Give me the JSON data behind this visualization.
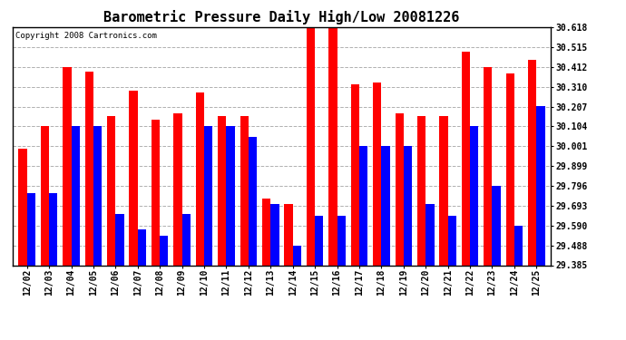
{
  "title": "Barometric Pressure Daily High/Low 20081226",
  "copyright": "Copyright 2008 Cartronics.com",
  "dates": [
    "12/02",
    "12/03",
    "12/04",
    "12/05",
    "12/06",
    "12/07",
    "12/08",
    "12/09",
    "12/10",
    "12/11",
    "12/12",
    "12/13",
    "12/14",
    "12/15",
    "12/16",
    "12/17",
    "12/18",
    "12/19",
    "12/20",
    "12/21",
    "12/22",
    "12/23",
    "12/24",
    "12/25"
  ],
  "highs": [
    29.99,
    30.104,
    30.412,
    30.39,
    30.16,
    30.29,
    30.14,
    30.17,
    30.28,
    30.16,
    30.16,
    29.73,
    29.7,
    30.618,
    30.618,
    30.32,
    30.33,
    30.17,
    30.16,
    30.16,
    30.49,
    30.412,
    30.38,
    30.45
  ],
  "lows": [
    29.76,
    29.76,
    30.104,
    30.104,
    29.65,
    29.57,
    29.54,
    29.65,
    30.104,
    30.104,
    30.05,
    29.7,
    29.488,
    29.64,
    29.64,
    30.001,
    30.001,
    30.001,
    29.7,
    29.64,
    30.104,
    29.796,
    29.59,
    30.207
  ],
  "ylim_min": 29.385,
  "ylim_max": 30.618,
  "yticks": [
    29.385,
    29.488,
    29.59,
    29.693,
    29.796,
    29.899,
    30.001,
    30.104,
    30.207,
    30.31,
    30.412,
    30.515,
    30.618
  ],
  "bar_width": 0.38,
  "high_color": "#ff0000",
  "low_color": "#0000ff",
  "bg_color": "#ffffff",
  "grid_color": "#b0b0b0",
  "title_fontsize": 11,
  "label_fontsize": 7,
  "tick_fontsize": 7,
  "fig_width": 6.9,
  "fig_height": 3.75
}
